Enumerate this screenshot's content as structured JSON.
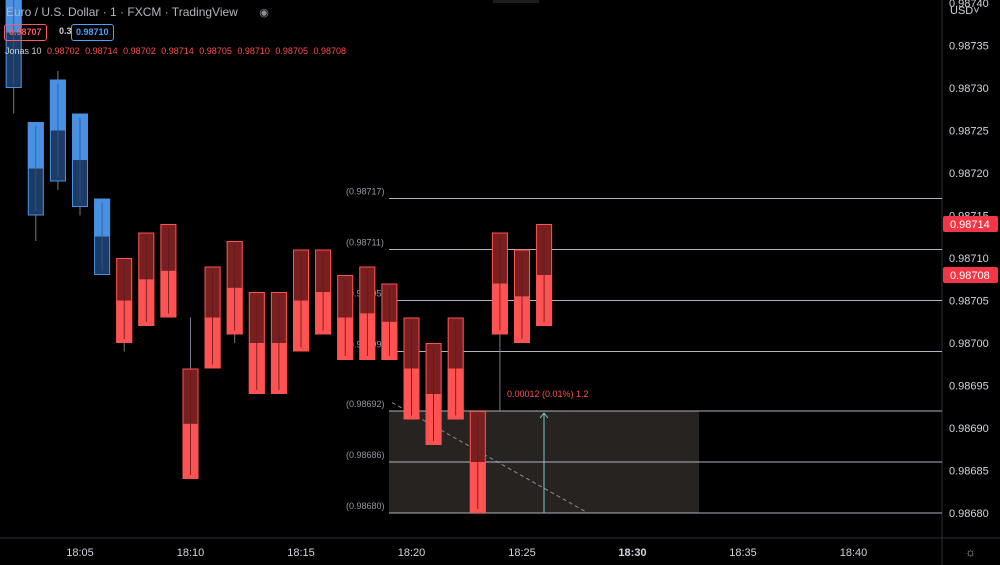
{
  "header": {
    "title": "Euro / U.S. Dollar · 1 · FXCM · TradingView",
    "sell_price": "0.98707",
    "spread": "0.3",
    "buy_price": "0.98710",
    "indicator_name": "Jonas 10",
    "indicator_values": [
      "0.98702",
      "0.98714",
      "0.98702",
      "0.98714",
      "0.98705",
      "0.98710",
      "0.98705",
      "0.98708"
    ]
  },
  "axis": {
    "currency": "USD",
    "price_ticks": [
      "0.98740",
      "0.98735",
      "0.98730",
      "0.98725",
      "0.98720",
      "0.98715",
      "0.98710",
      "0.98705",
      "0.98700",
      "0.98695",
      "0.98690",
      "0.98685",
      "0.98680"
    ],
    "time_ticks": [
      "18:05",
      "18:10",
      "18:15",
      "18:20",
      "18:25",
      "18:30",
      "18:35",
      "18:40"
    ],
    "bold_time_tick": "18:30",
    "price_tags": [
      {
        "value": "0.98714",
        "price": 0.98714
      },
      {
        "value": "0.98708",
        "price": 0.98708
      }
    ]
  },
  "chart_data": {
    "type": "candlestick",
    "y_range": [
      0.9868,
      0.9874
    ],
    "candles": [
      {
        "time": "18:02",
        "open": 0.9873,
        "close": 0.98743,
        "high": 0.98745,
        "low": 0.98727,
        "color": "blue"
      },
      {
        "time": "18:03",
        "open": 0.98715,
        "close": 0.98726,
        "high": 0.98726,
        "low": 0.98712,
        "color": "blue"
      },
      {
        "time": "18:04",
        "open": 0.98719,
        "close": 0.98731,
        "high": 0.98732,
        "low": 0.98718,
        "color": "blue"
      },
      {
        "time": "18:05",
        "open": 0.98716,
        "close": 0.98727,
        "high": 0.98727,
        "low": 0.98715,
        "color": "blue"
      },
      {
        "time": "18:06",
        "open": 0.98708,
        "close": 0.98717,
        "high": 0.98717,
        "low": 0.98708,
        "color": "blue"
      },
      {
        "time": "18:07",
        "open": 0.9871,
        "close": 0.987,
        "high": 0.9871,
        "low": 0.98699,
        "color": "red"
      },
      {
        "time": "18:08",
        "open": 0.98713,
        "close": 0.98702,
        "high": 0.98713,
        "low": 0.98702,
        "color": "red"
      },
      {
        "time": "18:09",
        "open": 0.98714,
        "close": 0.98703,
        "high": 0.98714,
        "low": 0.98703,
        "color": "red"
      },
      {
        "time": "18:10",
        "open": 0.98697,
        "close": 0.98684,
        "high": 0.98703,
        "low": 0.98684,
        "color": "red"
      },
      {
        "time": "18:11",
        "open": 0.98709,
        "close": 0.98697,
        "high": 0.98709,
        "low": 0.98697,
        "color": "red"
      },
      {
        "time": "18:12",
        "open": 0.98712,
        "close": 0.98701,
        "high": 0.98712,
        "low": 0.987,
        "color": "red"
      },
      {
        "time": "18:13",
        "open": 0.98706,
        "close": 0.98694,
        "high": 0.98706,
        "low": 0.98694,
        "color": "red"
      },
      {
        "time": "18:14",
        "open": 0.98706,
        "close": 0.98694,
        "high": 0.98706,
        "low": 0.98694,
        "color": "red"
      },
      {
        "time": "18:15",
        "open": 0.98711,
        "close": 0.98699,
        "high": 0.98711,
        "low": 0.98699,
        "color": "red"
      },
      {
        "time": "18:16",
        "open": 0.98711,
        "close": 0.98701,
        "high": 0.98711,
        "low": 0.98701,
        "color": "red"
      },
      {
        "time": "18:17",
        "open": 0.98708,
        "close": 0.98698,
        "high": 0.98708,
        "low": 0.98698,
        "color": "red"
      },
      {
        "time": "18:18",
        "open": 0.98709,
        "close": 0.98698,
        "high": 0.98709,
        "low": 0.98698,
        "color": "red"
      },
      {
        "time": "18:19",
        "open": 0.98707,
        "close": 0.98698,
        "high": 0.98707,
        "low": 0.98698,
        "color": "red"
      },
      {
        "time": "18:20",
        "open": 0.98703,
        "close": 0.98691,
        "high": 0.98703,
        "low": 0.98691,
        "color": "red"
      },
      {
        "time": "18:21",
        "open": 0.987,
        "close": 0.98688,
        "high": 0.987,
        "low": 0.98688,
        "color": "red"
      },
      {
        "time": "18:22",
        "open": 0.98703,
        "close": 0.98691,
        "high": 0.98703,
        "low": 0.98691,
        "color": "red"
      },
      {
        "time": "18:23",
        "open": 0.98692,
        "close": 0.9868,
        "high": 0.98692,
        "low": 0.9868,
        "color": "red"
      },
      {
        "time": "18:24",
        "open": 0.98713,
        "close": 0.98701,
        "high": 0.98713,
        "low": 0.98692,
        "color": "red"
      },
      {
        "time": "18:25",
        "open": 0.98711,
        "close": 0.987,
        "high": 0.98711,
        "low": 0.987,
        "color": "red"
      },
      {
        "time": "18:26",
        "open": 0.98714,
        "close": 0.98702,
        "high": 0.98714,
        "low": 0.98702,
        "color": "red"
      }
    ],
    "levels": [
      {
        "label": "(0.98717)",
        "price": 0.98717
      },
      {
        "label": "(0.98711)",
        "price": 0.98711
      },
      {
        "label": "(0.98705)",
        "price": 0.98705
      },
      {
        "label": "(0.98699)",
        "price": 0.98699
      },
      {
        "label": "(0.98692)",
        "price": 0.98692
      },
      {
        "label": "(0.98686)",
        "price": 0.98686
      },
      {
        "label": "(0.98680)",
        "price": 0.9868
      }
    ],
    "measure_label": "0.00012 (0.01%) 1.2",
    "colors": {
      "up_fill": "#4a90e2",
      "up_dark": "#1c3c66",
      "down_fill": "#ff5252",
      "down_dark": "#7a1f1f",
      "level_line": "#b2b5be",
      "price_tag": "#f23645",
      "measure": "#ff4d4d"
    }
  }
}
